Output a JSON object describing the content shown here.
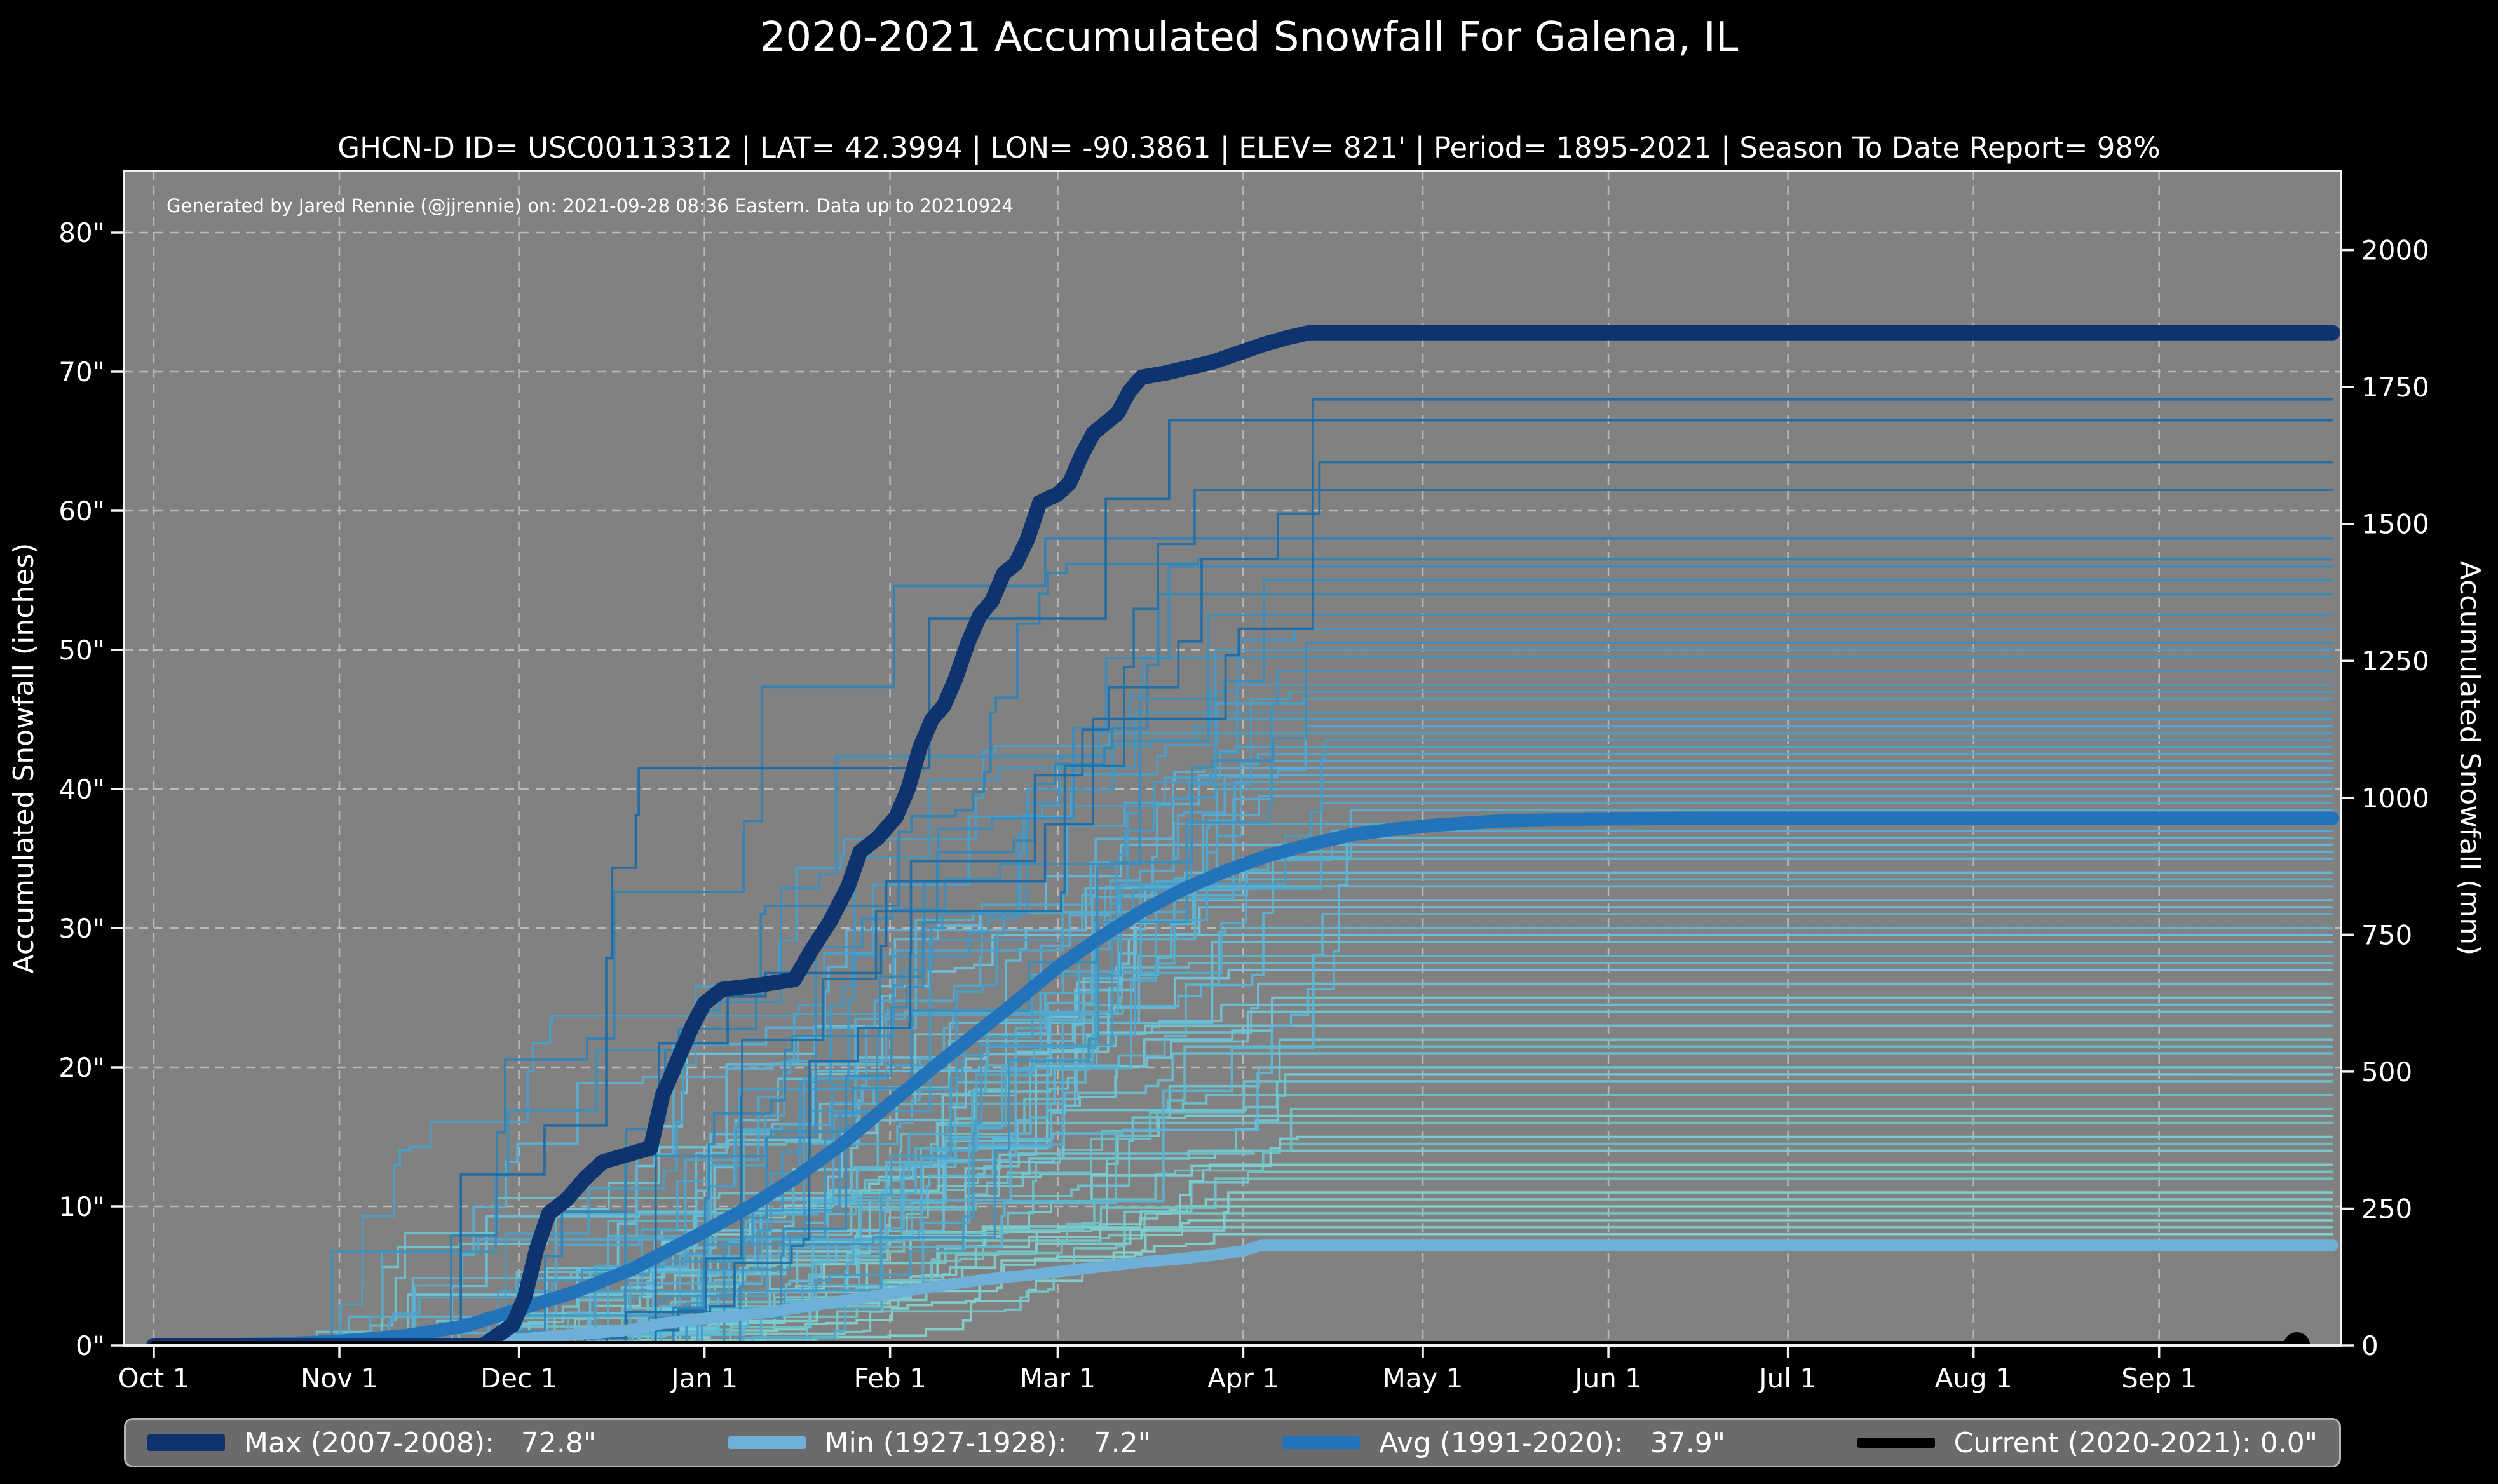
{
  "page": {
    "title": "2020-2021 Accumulated Snowfall For Galena, IL",
    "subtitle": "GHCN-D ID= USC00113312 | LAT= 42.3994 | LON= -90.3861 | ELEV= 821' | Period= 1895-2021 | Season To Date Report= 98%"
  },
  "colors": {
    "page_bg": "#000000",
    "plot_bg": "#818181",
    "grid": "#bababa",
    "spine": "#f2f2f2",
    "text": "#ffffff",
    "legend_bg": "#6b6b6b",
    "legend_border": "#b5b5b5"
  },
  "chart_data": {
    "type": "line",
    "title": "2020-2021 Accumulated Snowfall For Galena, IL",
    "subtitle": "GHCN-D ID= USC00113312 | LAT= 42.3994 | LON= -90.3861 | ELEV= 821' | Period= 1895-2021 | Season To Date Report= 98%",
    "attribution": "Generated by Jared Rennie (@jjrennie) on: 2021-09-28 08:36 Eastern. Data up to 20210924",
    "x_axis": {
      "unit": "day of snow season (0 = Oct 1)",
      "ticks": [
        {
          "label": "Oct 1",
          "day": 0
        },
        {
          "label": "Nov 1",
          "day": 31
        },
        {
          "label": "Dec 1",
          "day": 61
        },
        {
          "label": "Jan 1",
          "day": 92
        },
        {
          "label": "Feb 1",
          "day": 123
        },
        {
          "label": "Mar 1",
          "day": 151
        },
        {
          "label": "Apr 1",
          "day": 182
        },
        {
          "label": "May 1",
          "day": 212
        },
        {
          "label": "Jun 1",
          "day": 243
        },
        {
          "label": "Jul 1",
          "day": 273
        },
        {
          "label": "Aug 1",
          "day": 304
        },
        {
          "label": "Sep 1",
          "day": 335
        }
      ]
    },
    "y_axis_left": {
      "label": "Accumulated Snowfall (inches)",
      "range": [
        0,
        84.4
      ],
      "ticks": [
        {
          "label": "0\"",
          "value": 0
        },
        {
          "label": "10\"",
          "value": 10
        },
        {
          "label": "20\"",
          "value": 20
        },
        {
          "label": "30\"",
          "value": 30
        },
        {
          "label": "40\"",
          "value": 40
        },
        {
          "label": "50\"",
          "value": 50
        },
        {
          "label": "60\"",
          "value": 60
        },
        {
          "label": "70\"",
          "value": 70
        },
        {
          "label": "80\"",
          "value": 80
        }
      ]
    },
    "y_axis_right": {
      "label": "Accumulated Snowfall (mm)",
      "ticks": [
        {
          "label": "0",
          "mm": 0
        },
        {
          "label": "250",
          "mm": 250
        },
        {
          "label": "500",
          "mm": 500
        },
        {
          "label": "750",
          "mm": 750
        },
        {
          "label": "1000",
          "mm": 1000
        },
        {
          "label": "1250",
          "mm": 1250
        },
        {
          "label": "1500",
          "mm": 1500
        },
        {
          "label": "1750",
          "mm": 1750
        },
        {
          "label": "2000",
          "mm": 2000
        }
      ]
    },
    "series": [
      {
        "id": "min",
        "name": "Min (1927-1928)",
        "total_inches": 7.2,
        "color": "#6fb0d8",
        "width": 18,
        "points": [
          [
            0,
            0
          ],
          [
            57,
            0
          ],
          [
            60,
            0.4
          ],
          [
            67,
            0.7
          ],
          [
            74,
            0.9
          ],
          [
            81,
            1.2
          ],
          [
            85,
            1.6
          ],
          [
            91,
            1.9
          ],
          [
            96,
            2.1
          ],
          [
            103,
            2.4
          ],
          [
            109,
            2.8
          ],
          [
            115,
            3.2
          ],
          [
            121,
            3.6
          ],
          [
            127,
            4.0
          ],
          [
            133,
            4.4
          ],
          [
            140,
            4.8
          ],
          [
            147,
            5.1
          ],
          [
            153,
            5.4
          ],
          [
            159,
            5.7
          ],
          [
            165,
            6.0
          ],
          [
            171,
            6.2
          ],
          [
            177,
            6.5
          ],
          [
            182,
            6.8
          ],
          [
            185,
            7.2
          ],
          [
            364,
            7.2
          ]
        ]
      },
      {
        "id": "avg",
        "name": "Avg (1991-2020)",
        "total_inches": 37.9,
        "color": "#2273b9",
        "width": 21,
        "points": [
          [
            0,
            0
          ],
          [
            20,
            0.1
          ],
          [
            31,
            0.3
          ],
          [
            42,
            0.7
          ],
          [
            52,
            1.4
          ],
          [
            61,
            2.6
          ],
          [
            70,
            3.8
          ],
          [
            80,
            5.5
          ],
          [
            92,
            8.2
          ],
          [
            100,
            10.1
          ],
          [
            107,
            12.0
          ],
          [
            115,
            14.5
          ],
          [
            123,
            17.4
          ],
          [
            130,
            19.9
          ],
          [
            137,
            22.3
          ],
          [
            144,
            24.7
          ],
          [
            151,
            27.2
          ],
          [
            158,
            29.3
          ],
          [
            165,
            31.2
          ],
          [
            172,
            32.8
          ],
          [
            179,
            34.1
          ],
          [
            186,
            35.2
          ],
          [
            193,
            36.0
          ],
          [
            200,
            36.7
          ],
          [
            207,
            37.1
          ],
          [
            214,
            37.4
          ],
          [
            225,
            37.7
          ],
          [
            240,
            37.85
          ],
          [
            260,
            37.9
          ],
          [
            364,
            37.9
          ]
        ]
      },
      {
        "id": "max",
        "name": "Max (2007-2008)",
        "total_inches": 72.8,
        "color": "#0e3470",
        "width": 24,
        "points": [
          [
            0,
            0
          ],
          [
            55,
            0
          ],
          [
            60,
            1.5
          ],
          [
            62,
            3.5
          ],
          [
            64,
            7.0
          ],
          [
            66,
            9.5
          ],
          [
            69,
            10.5
          ],
          [
            72,
            12.0
          ],
          [
            75,
            13.2
          ],
          [
            79,
            13.7
          ],
          [
            83,
            14.2
          ],
          [
            85,
            18.0
          ],
          [
            87,
            20.0
          ],
          [
            90,
            23.0
          ],
          [
            92,
            24.6
          ],
          [
            95,
            25.6
          ],
          [
            101,
            25.9
          ],
          [
            107,
            26.3
          ],
          [
            110,
            28.5
          ],
          [
            113,
            30.5
          ],
          [
            116,
            33.0
          ],
          [
            118,
            35.5
          ],
          [
            121,
            36.5
          ],
          [
            124,
            38.0
          ],
          [
            126,
            40.0
          ],
          [
            128,
            43.0
          ],
          [
            130,
            45.0
          ],
          [
            132,
            46.0
          ],
          [
            134,
            48.0
          ],
          [
            136,
            50.5
          ],
          [
            138,
            52.5
          ],
          [
            140,
            53.5
          ],
          [
            142,
            55.5
          ],
          [
            144,
            56.2
          ],
          [
            146,
            58.0
          ],
          [
            148,
            60.6
          ],
          [
            151,
            61.2
          ],
          [
            153,
            62.0
          ],
          [
            155,
            64.0
          ],
          [
            157,
            65.6
          ],
          [
            159,
            66.3
          ],
          [
            161,
            67.0
          ],
          [
            163,
            68.6
          ],
          [
            165,
            69.6
          ],
          [
            169,
            69.9
          ],
          [
            173,
            70.3
          ],
          [
            177,
            70.7
          ],
          [
            181,
            71.3
          ],
          [
            185,
            71.9
          ],
          [
            189,
            72.4
          ],
          [
            193,
            72.8
          ],
          [
            364,
            72.8
          ]
        ]
      },
      {
        "id": "current",
        "name": "Current (2020-2021)",
        "total_inches": 0.0,
        "color": "#000000",
        "width": 14,
        "points": [
          [
            0,
            0
          ],
          [
            358,
            0
          ]
        ],
        "end_marker_day": 358,
        "end_marker_radius": 21
      }
    ],
    "historical_years": {
      "note": "thin background lines, one per season 1895-2021; approximate season final totals in inches",
      "final_totals_inches": [
        68,
        66.5,
        63.5,
        61.5,
        58,
        56.5,
        56,
        55,
        54,
        52.5,
        51.5,
        50.5,
        50,
        49.5,
        48.5,
        47.5,
        47,
        46.5,
        45.5,
        45,
        44.5,
        44,
        43.5,
        43,
        42.5,
        42,
        41.5,
        41,
        40.5,
        40,
        39.5,
        39,
        38.5,
        37.5,
        37,
        36.5,
        36,
        35.5,
        35,
        34,
        33.5,
        33,
        32,
        31.5,
        31,
        30,
        29.5,
        29,
        28,
        27.5,
        27,
        26,
        25,
        24.5,
        24,
        23,
        22,
        21.5,
        21,
        20,
        19.5,
        19,
        18,
        17,
        16.5,
        16,
        15,
        14.5,
        14,
        13,
        12.5,
        12,
        11,
        10.5,
        10,
        9.5,
        9,
        8.5,
        8
      ],
      "color_low": "#7dcdc8",
      "color_mid": "#5fb8d8",
      "color_high": "#1a68a4",
      "line_width": 3.6
    },
    "legend": {
      "items": [
        {
          "label": "Max (2007-2008):   72.8\"",
          "color": "#0e3470",
          "swatch_h": 26
        },
        {
          "label": "Min (1927-1928):   7.2\"",
          "color": "#6fb0d8",
          "swatch_h": 20
        },
        {
          "label": "Avg (1991-2020):   37.9\"",
          "color": "#2273b9",
          "swatch_h": 20
        },
        {
          "label": "Current (2020-2021): 0.0\"",
          "color": "#000000",
          "swatch_h": 16
        }
      ]
    }
  }
}
